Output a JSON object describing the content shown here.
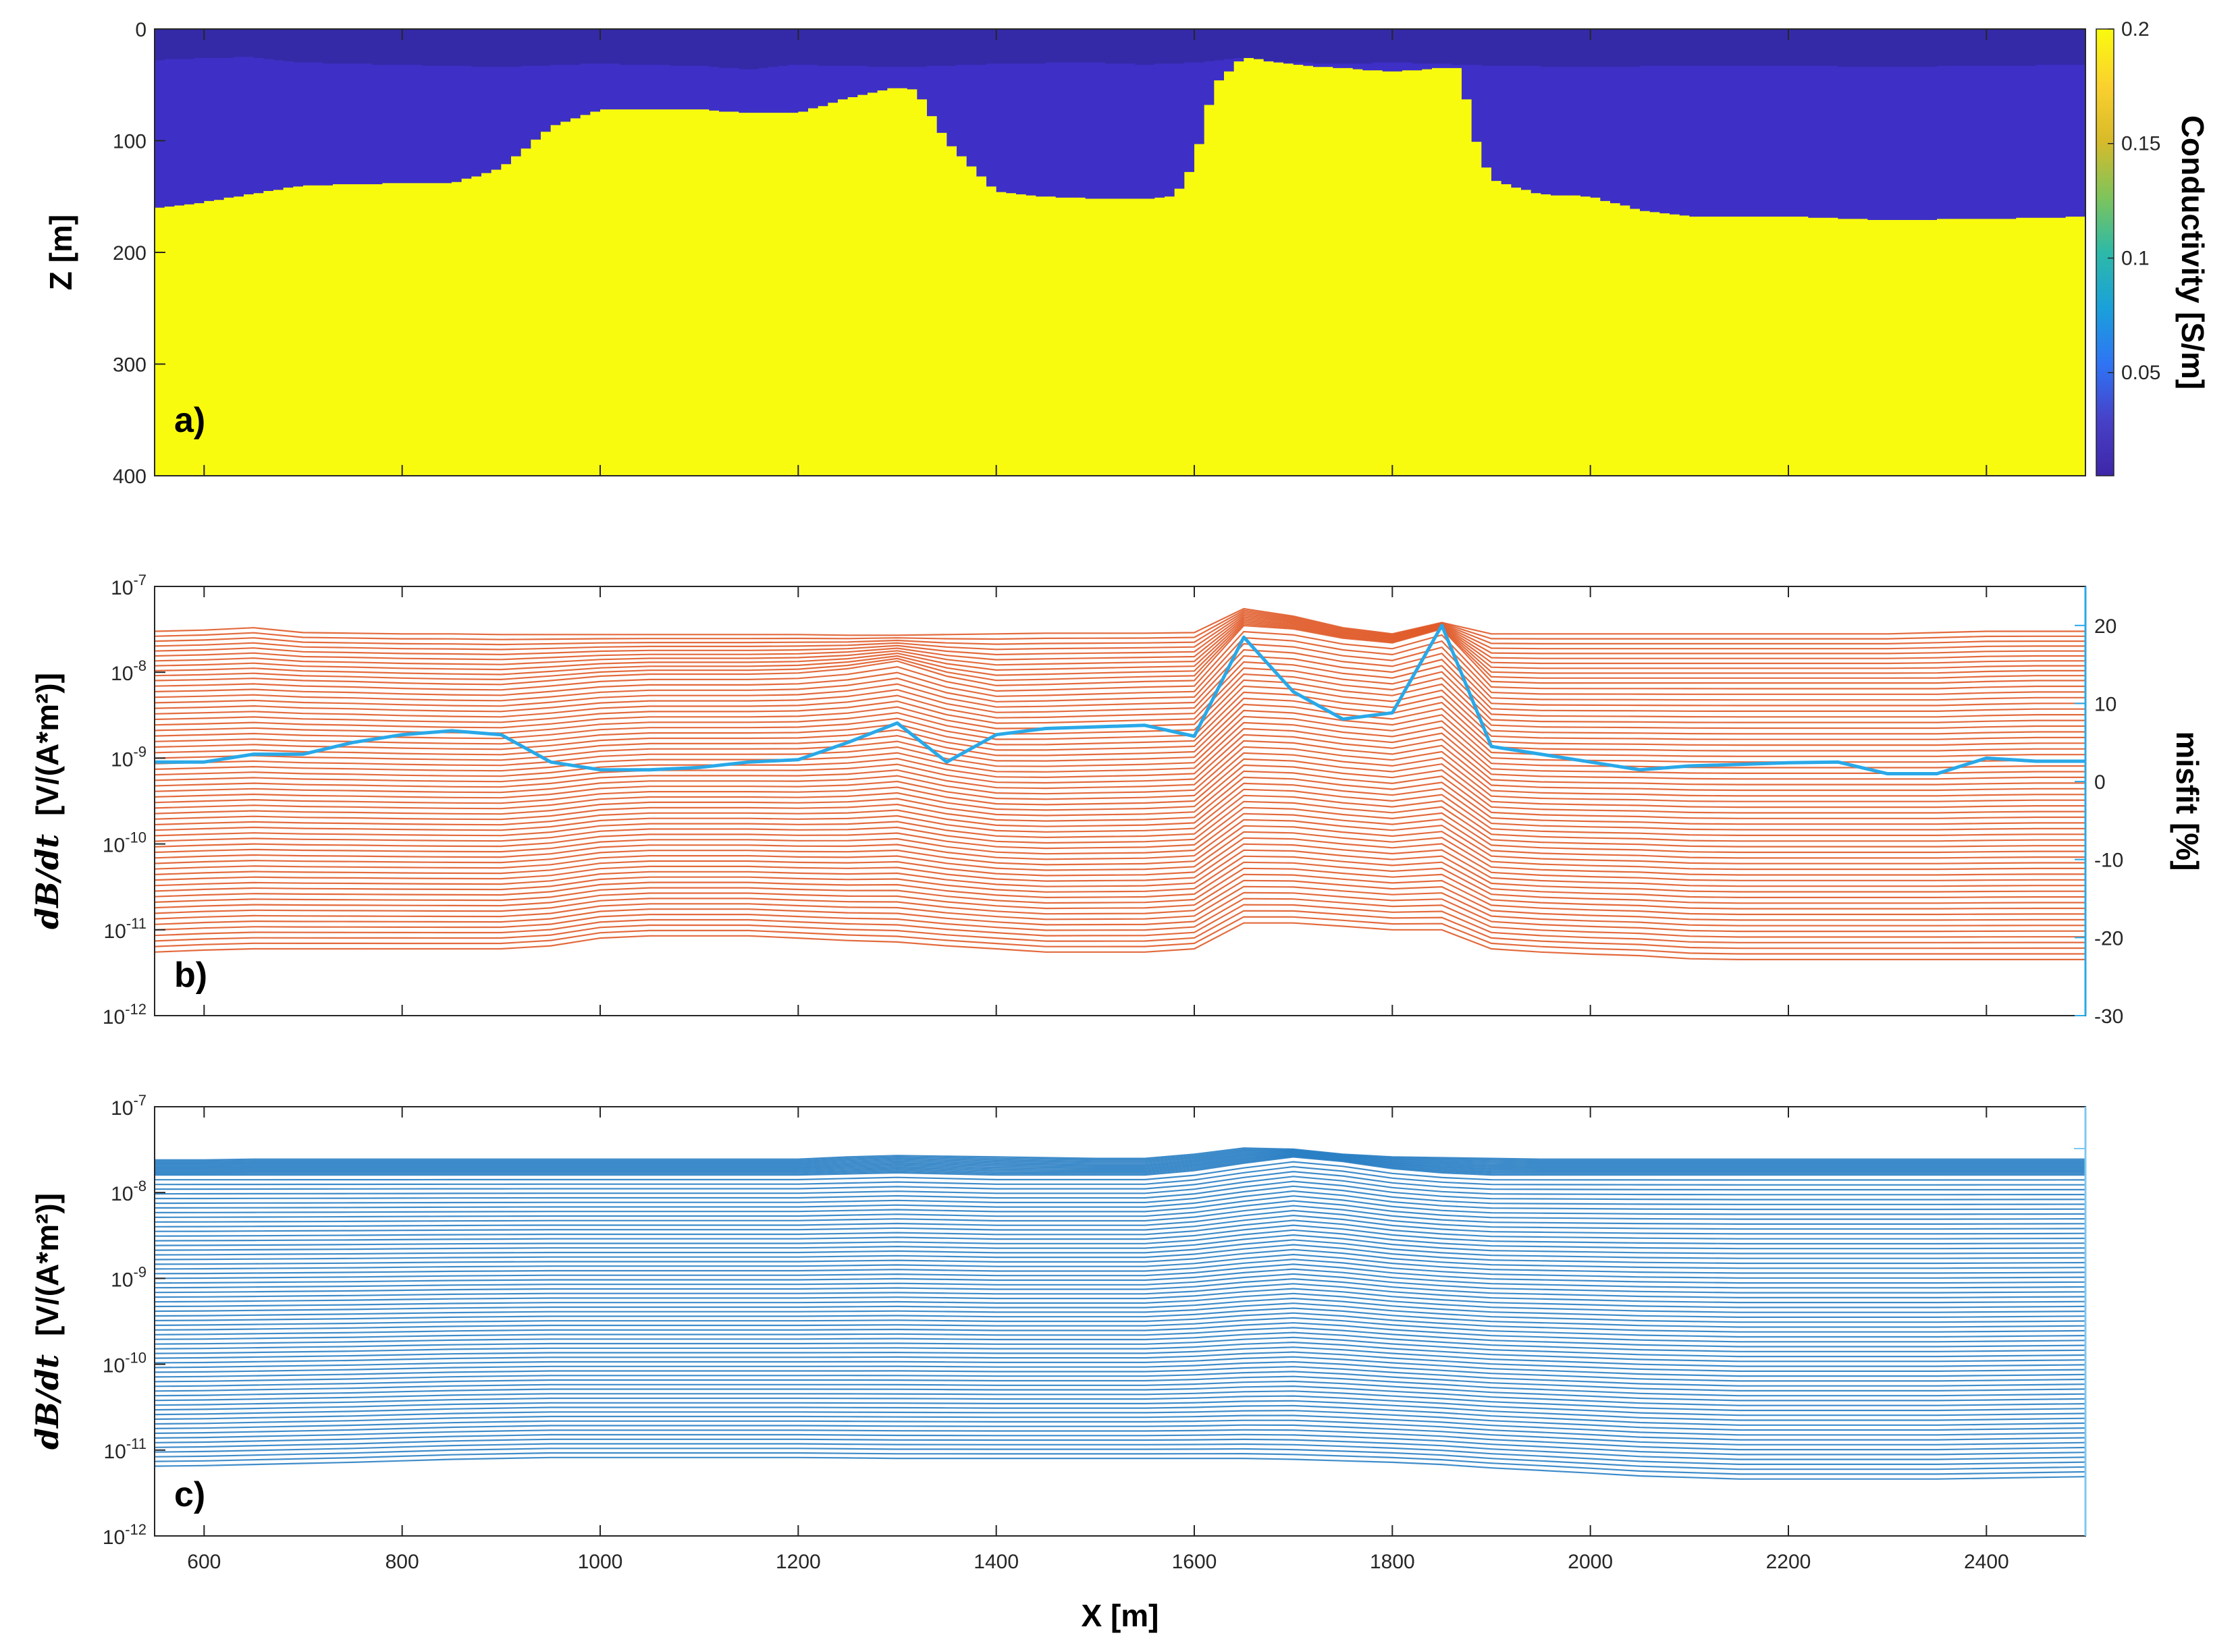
{
  "chart_data": [
    {
      "panel_label": "a)",
      "type": "heatmap",
      "ylabel": "Z [m]",
      "ylim": [
        400,
        0
      ],
      "yticks": [
        "0",
        "100",
        "200",
        "300",
        "400"
      ],
      "xlim": [
        550,
        2500
      ],
      "colorbar": {
        "label": "Conductivity [S/m]",
        "range": [
          0.005,
          0.2
        ],
        "ticks": [
          "0.05",
          "0.1",
          "0.15",
          "0.2"
        ],
        "colormap": [
          "#3e26a8",
          "#4741c8",
          "#2f74f5",
          "#1aa0da",
          "#2db9a8",
          "#7fc45a",
          "#d8ba2a",
          "#fbd12e",
          "#f9fb0e"
        ]
      },
      "layer_colors": {
        "top": "#342aa8",
        "middle": "#3e30c6",
        "basement": "#f9fb0e"
      },
      "surface_layer_bottom": {
        "x": [
          550,
          600,
          650,
          700,
          800,
          900,
          1000,
          1100,
          1150,
          1200,
          1300,
          1350,
          1400,
          1500,
          1550,
          1600,
          1650,
          1700,
          1750,
          1800,
          1850,
          1900,
          2000,
          2100,
          2200,
          2300,
          2400,
          2500
        ],
        "z": [
          28,
          26,
          25,
          30,
          32,
          34,
          31,
          33,
          36,
          32,
          34,
          33,
          31,
          30,
          32,
          30,
          26,
          30,
          31,
          30,
          31,
          33,
          34,
          33,
          33,
          34,
          33,
          32
        ]
      },
      "basement_top": {
        "x": [
          550,
          600,
          700,
          800,
          850,
          900,
          950,
          1000,
          1100,
          1150,
          1200,
          1250,
          1300,
          1320,
          1350,
          1400,
          1450,
          1500,
          1550,
          1580,
          1600,
          1620,
          1650,
          1700,
          1750,
          1800,
          1850,
          1870,
          1880,
          1900,
          1950,
          2000,
          2050,
          2100,
          2200,
          2300,
          2400,
          2500
        ],
        "z": [
          160,
          155,
          140,
          138,
          138,
          125,
          88,
          72,
          72,
          75,
          75,
          62,
          52,
          55,
          100,
          145,
          150,
          152,
          152,
          150,
          120,
          50,
          25,
          32,
          35,
          38,
          35,
          35,
          90,
          135,
          148,
          150,
          162,
          168,
          168,
          171,
          170,
          168
        ]
      }
    },
    {
      "panel_label": "b)",
      "type": "line",
      "ylabel_prefix": "dB/dt",
      "ylabel_unit": "[V/(A*m²)]",
      "yscale": "log",
      "ylim": [
        1e-12,
        1e-07
      ],
      "yticks": [
        {
          "exp": "-7",
          "value": 1e-07
        },
        {
          "exp": "-8",
          "value": 1e-08
        },
        {
          "exp": "-9",
          "value": 1e-09
        },
        {
          "exp": "-10",
          "value": 1e-10
        },
        {
          "exp": "-11",
          "value": 1e-11
        },
        {
          "exp": "-12",
          "value": 1e-12
        }
      ],
      "tick_base": "10",
      "xlim": [
        550,
        2500
      ],
      "series_color": "#e05a28",
      "num_gates": 60,
      "x": [
        550,
        600,
        650,
        700,
        750,
        800,
        850,
        900,
        950,
        1000,
        1050,
        1100,
        1150,
        1200,
        1250,
        1300,
        1350,
        1400,
        1450,
        1500,
        1550,
        1600,
        1650,
        1700,
        1750,
        1800,
        1850,
        1900,
        1950,
        2000,
        2050,
        2100,
        2150,
        2200,
        2250,
        2300,
        2350,
        2400,
        2450,
        2500
      ],
      "early_gate": [
        3e-08,
        3.1e-08,
        3.3e-08,
        2.9e-08,
        2.85e-08,
        2.8e-08,
        2.8e-08,
        2.75e-08,
        2.75e-08,
        2.75e-08,
        2.75e-08,
        2.75e-08,
        2.75e-08,
        2.75e-08,
        2.7e-08,
        2.7e-08,
        2.75e-08,
        2.8e-08,
        2.85e-08,
        2.85e-08,
        2.85e-08,
        2.9e-08,
        5.5e-08,
        4.5e-08,
        3.3e-08,
        2.8e-08,
        3.8e-08,
        2.8e-08,
        2.8e-08,
        2.8e-08,
        2.8e-08,
        2.8e-08,
        2.8e-08,
        2.8e-08,
        2.8e-08,
        2.8e-08,
        2.9e-08,
        3e-08,
        3e-08,
        3e-08
      ],
      "late_gate": [
        5.5e-12,
        5.8e-12,
        6e-12,
        6e-12,
        6e-12,
        6e-12,
        6e-12,
        6e-12,
        6.5e-12,
        8e-12,
        8.5e-12,
        8.5e-12,
        8.5e-12,
        8e-12,
        7.5e-12,
        7.2e-12,
        6.5e-12,
        6e-12,
        5.5e-12,
        5.5e-12,
        5.5e-12,
        6e-12,
        1.2e-11,
        1.2e-11,
        1.1e-11,
        1e-11,
        1e-11,
        6e-12,
        5.5e-12,
        5.2e-12,
        5e-12,
        4.6e-12,
        4.5e-12,
        4.5e-12,
        4.5e-12,
        4.5e-12,
        4.5e-12,
        4.5e-12,
        4.5e-12,
        4.5e-12
      ],
      "feature_gate": [
        8e-09,
        8.2e-09,
        8.5e-09,
        8e-09,
        7.8e-09,
        7.5e-09,
        7.3e-09,
        7.2e-09,
        8e-09,
        9e-09,
        9.5e-09,
        9.5e-09,
        9.5e-09,
        9.8e-09,
        1.1e-08,
        1.35e-08,
        9e-09,
        7e-09,
        7.2e-09,
        7.5e-09,
        7.8e-09,
        8e-09,
        3.5e-08,
        3.2e-08,
        2.5e-08,
        2.2e-08,
        3.2e-08,
        7.8e-09,
        7.5e-09,
        7.5e-09,
        7.5e-09,
        7.5e-09,
        7.5e-09,
        7.5e-09,
        7.5e-09,
        7.5e-09,
        7.5e-09,
        7.8e-09,
        8e-09,
        8e-09
      ],
      "misfit": {
        "label": "misfit [%]",
        "color": "#29a8e8",
        "ylim": [
          -30,
          25
        ],
        "yticks": [
          {
            "label": "20",
            "value": 20
          },
          {
            "label": "10",
            "value": 10
          },
          {
            "label": "0",
            "value": 0
          },
          {
            "label": "-10",
            "value": -10
          },
          {
            "label": "-20",
            "value": -20
          },
          {
            "label": "-30",
            "value": -30
          }
        ],
        "x": [
          550,
          600,
          650,
          700,
          750,
          800,
          850,
          900,
          950,
          1000,
          1050,
          1100,
          1150,
          1200,
          1250,
          1300,
          1350,
          1400,
          1450,
          1500,
          1550,
          1600,
          1650,
          1700,
          1750,
          1800,
          1850,
          1900,
          1950,
          2000,
          2050,
          2100,
          2150,
          2200,
          2250,
          2300,
          2350,
          2400,
          2450,
          2500
        ],
        "values": [
          2.5,
          2.5,
          3.5,
          3.5,
          5.0,
          6.0,
          6.5,
          6.0,
          2.5,
          1.5,
          1.5,
          1.8,
          2.5,
          2.8,
          5.0,
          7.5,
          2.5,
          6.0,
          6.8,
          7.0,
          7.2,
          5.8,
          18.5,
          11.5,
          8.0,
          8.8,
          20.0,
          4.5,
          3.5,
          2.5,
          1.5,
          2.0,
          2.2,
          2.4,
          2.5,
          1.0,
          1.0,
          3.0,
          2.6,
          2.6
        ]
      }
    },
    {
      "panel_label": "c)",
      "type": "line",
      "ylabel_prefix": "dB/dt",
      "ylabel_unit": "[V/(A*m²)]",
      "yscale": "log",
      "ylim": [
        1e-12,
        1e-07
      ],
      "yticks": [
        {
          "exp": "-7",
          "value": 1e-07
        },
        {
          "exp": "-8",
          "value": 1e-08
        },
        {
          "exp": "-9",
          "value": 1e-09
        },
        {
          "exp": "-10",
          "value": 1e-10
        },
        {
          "exp": "-11",
          "value": 1e-11
        },
        {
          "exp": "-12",
          "value": 1e-12
        }
      ],
      "tick_base": "10",
      "xlim": [
        550,
        2500
      ],
      "xlabel": "X [m]",
      "xticks": [
        "600",
        "800",
        "1000",
        "1200",
        "1400",
        "1600",
        "1800",
        "2000",
        "2200",
        "2400"
      ],
      "series_color": "#2a7fc4",
      "num_gates": 75,
      "x": [
        550,
        600,
        650,
        700,
        750,
        800,
        850,
        900,
        950,
        1000,
        1050,
        1100,
        1150,
        1200,
        1250,
        1300,
        1350,
        1400,
        1450,
        1500,
        1550,
        1600,
        1650,
        1700,
        1750,
        1800,
        1850,
        1900,
        1950,
        2000,
        2050,
        2100,
        2150,
        2200,
        2250,
        2300,
        2350,
        2400,
        2450,
        2500
      ],
      "early_gate": [
        2.4e-08,
        2.4e-08,
        2.45e-08,
        2.45e-08,
        2.45e-08,
        2.45e-08,
        2.45e-08,
        2.45e-08,
        2.45e-08,
        2.45e-08,
        2.45e-08,
        2.45e-08,
        2.45e-08,
        2.45e-08,
        2.6e-08,
        2.7e-08,
        2.65e-08,
        2.6e-08,
        2.55e-08,
        2.5e-08,
        2.5e-08,
        2.8e-08,
        3.3e-08,
        3.2e-08,
        2.8e-08,
        2.6e-08,
        2.55e-08,
        2.5e-08,
        2.45e-08,
        2.45e-08,
        2.45e-08,
        2.45e-08,
        2.45e-08,
        2.45e-08,
        2.45e-08,
        2.45e-08,
        2.45e-08,
        2.45e-08,
        2.45e-08,
        2.45e-08
      ],
      "late_gate": [
        6.5e-12,
        6.6e-12,
        6.8e-12,
        7e-12,
        7.2e-12,
        7.5e-12,
        7.8e-12,
        8e-12,
        8.2e-12,
        8.2e-12,
        8.2e-12,
        8.2e-12,
        8.2e-12,
        8.2e-12,
        8.1e-12,
        8e-12,
        8e-12,
        8e-12,
        8e-12,
        8e-12,
        8e-12,
        8e-12,
        8e-12,
        7.8e-12,
        7.5e-12,
        7.2e-12,
        6.8e-12,
        6.2e-12,
        5.8e-12,
        5.4e-12,
        5e-12,
        4.8e-12,
        4.6e-12,
        4.6e-12,
        4.6e-12,
        4.6e-12,
        4.6e-12,
        4.7e-12,
        4.8e-12,
        4.9e-12
      ],
      "feature_gate": [
        1.6e-08,
        1.6e-08,
        1.6e-08,
        1.6e-08,
        1.6e-08,
        1.6e-08,
        1.6e-08,
        1.6e-08,
        1.6e-08,
        1.6e-08,
        1.6e-08,
        1.6e-08,
        1.6e-08,
        1.6e-08,
        1.65e-08,
        1.7e-08,
        1.65e-08,
        1.6e-08,
        1.6e-08,
        1.6e-08,
        1.6e-08,
        1.8e-08,
        2.2e-08,
        2.6e-08,
        2.3e-08,
        1.9e-08,
        1.7e-08,
        1.6e-08,
        1.6e-08,
        1.6e-08,
        1.6e-08,
        1.6e-08,
        1.6e-08,
        1.6e-08,
        1.6e-08,
        1.6e-08,
        1.6e-08,
        1.6e-08,
        1.6e-08,
        1.6e-08
      ]
    }
  ]
}
